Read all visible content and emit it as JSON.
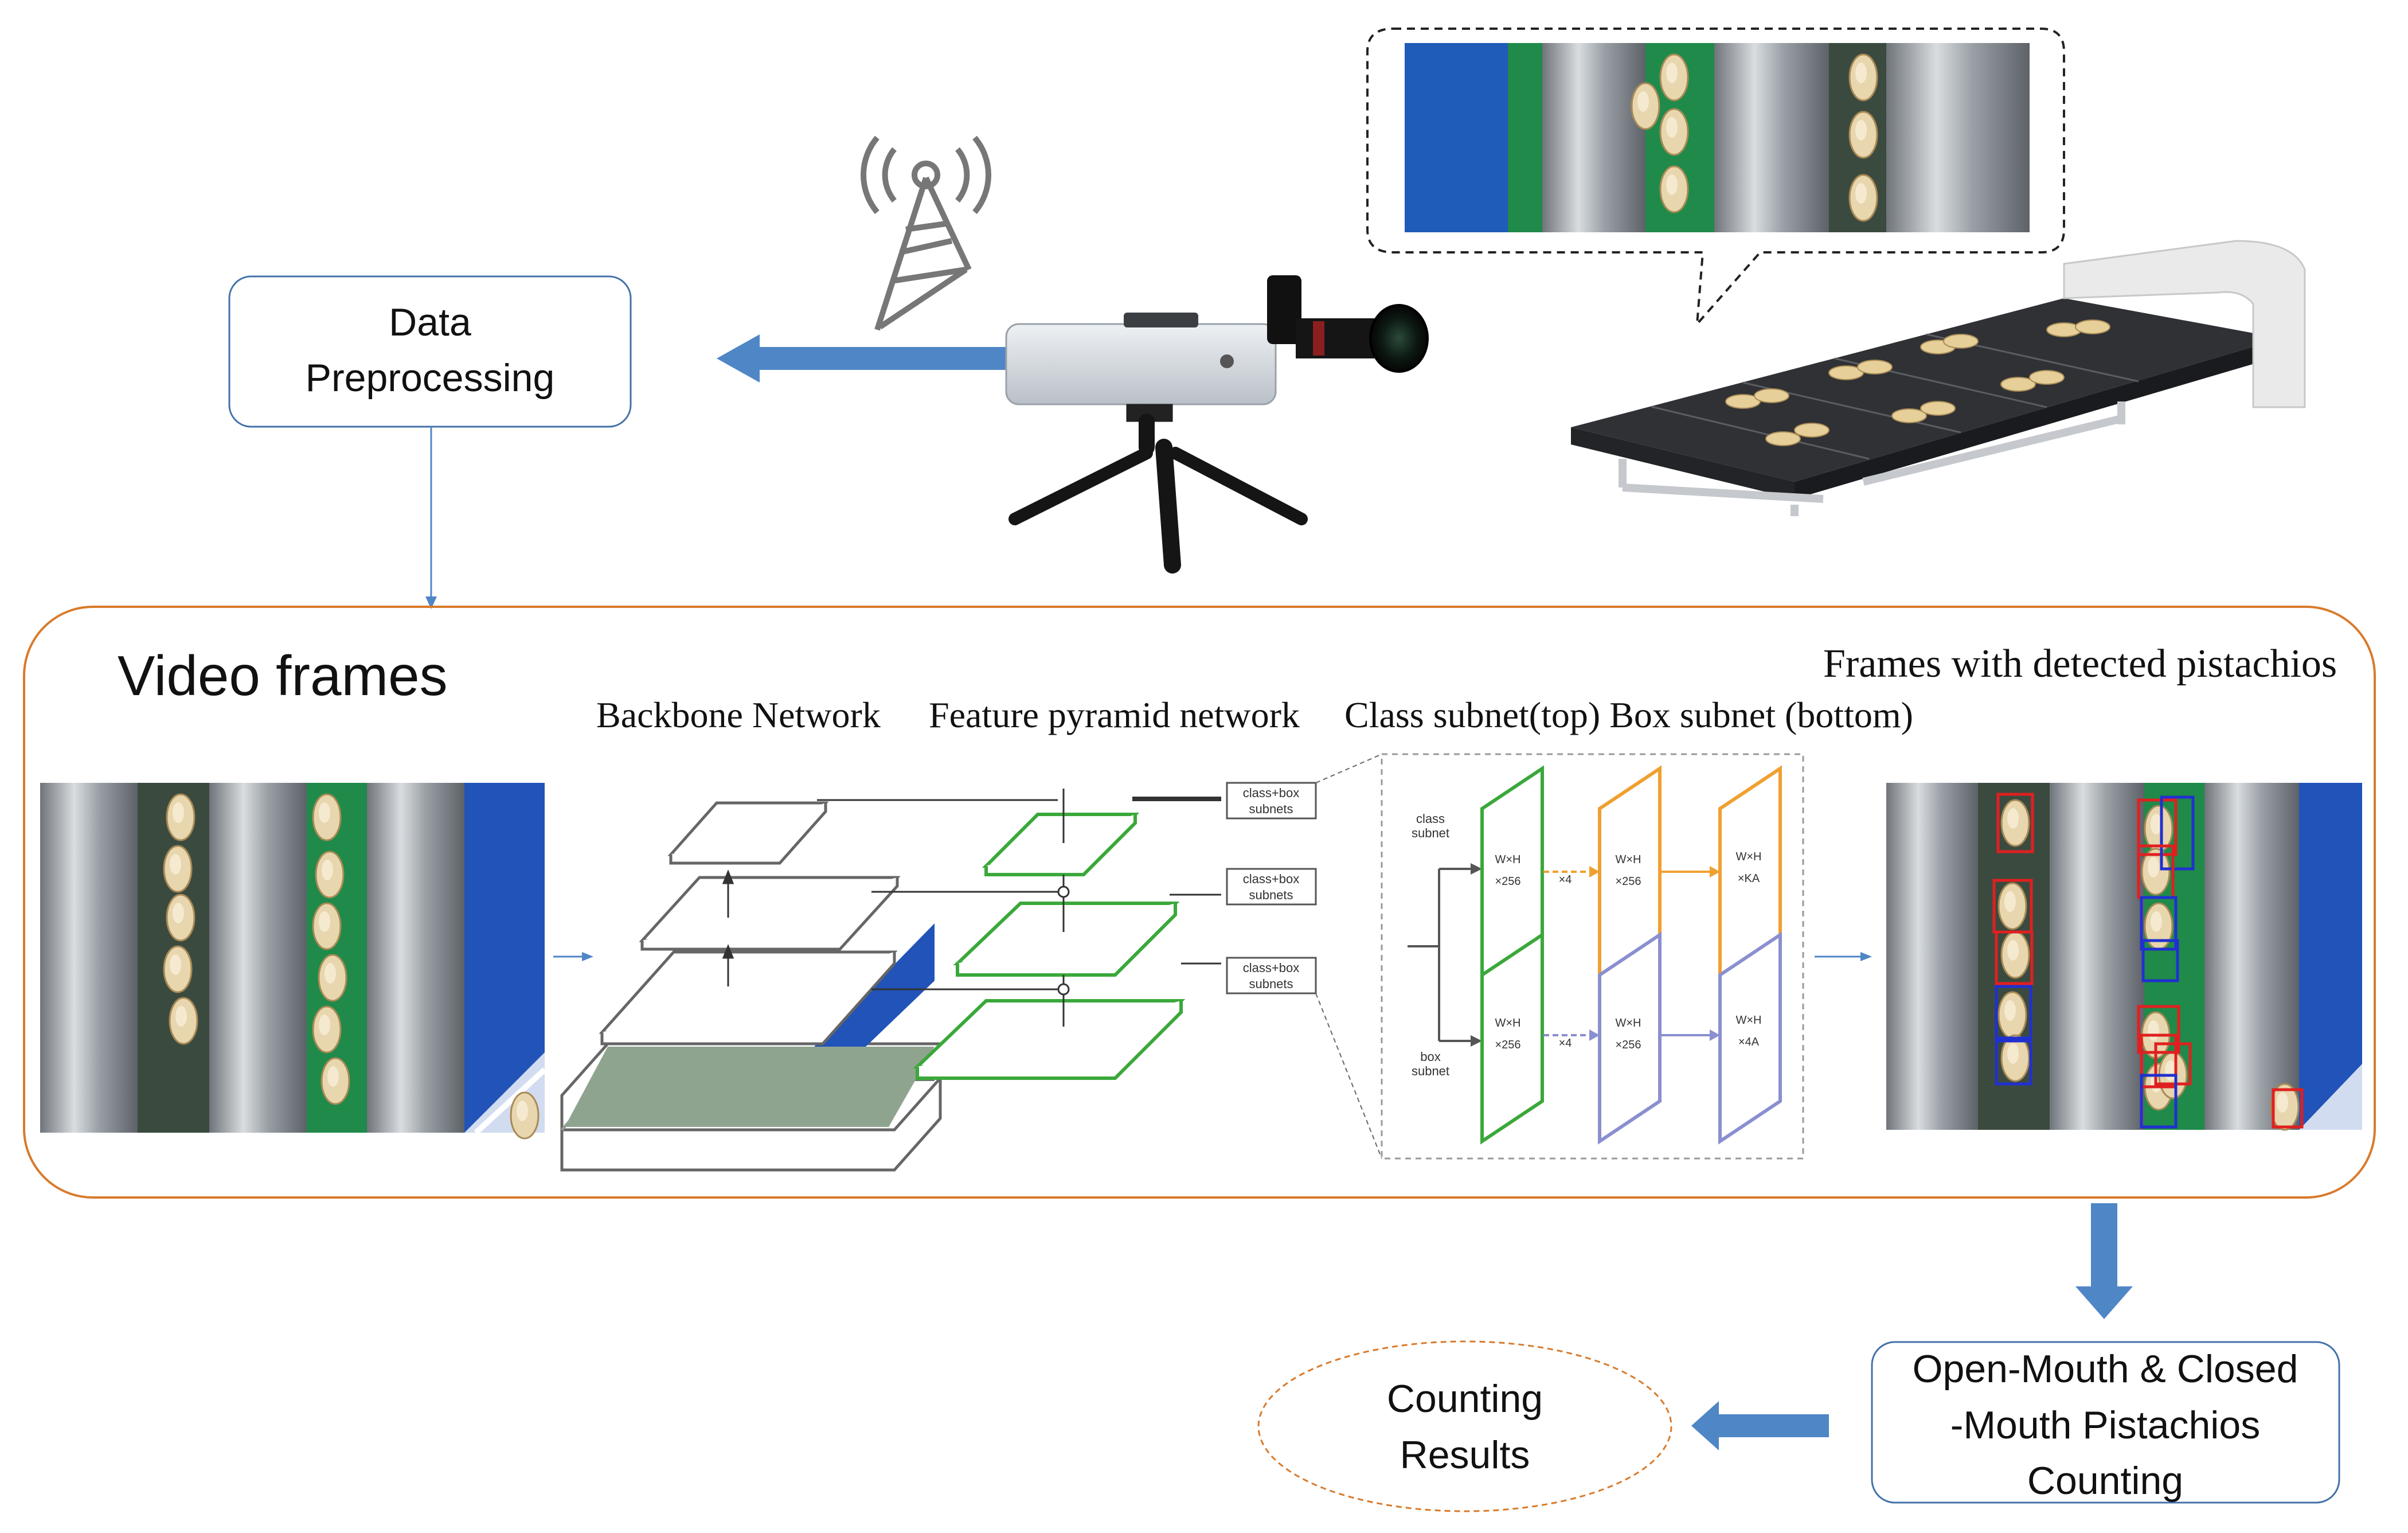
{
  "boxes": {
    "data_preprocessing": [
      "Data",
      "Preprocessing"
    ],
    "video_frames": "Video frames",
    "counting": [
      "Open-Mouth & Closed",
      "-Mouth Pistachios",
      "Counting"
    ],
    "results": [
      "Counting",
      "Results"
    ]
  },
  "captions": {
    "backbone": "Backbone Network",
    "fpn": "Feature pyramid network",
    "subnets": "Class subnet(top) Box subnet (bottom)",
    "detected": "Frames with detected pistachios"
  },
  "fpn_labels": [
    "class+box",
    "subnets"
  ],
  "subnet_labels": {
    "class_top": [
      "class",
      "subnet"
    ],
    "box_bottom": [
      "box",
      "subnet"
    ],
    "wh": "W×H",
    "c256": "×256",
    "x4": "×4",
    "ka": "×KA",
    "a4": "×4A"
  },
  "colors": {
    "accent_orange": "#d97a2b",
    "arrow_blue": "#4f86c6",
    "box_border": "#4472a8",
    "fpn_green": "#3aa83a",
    "class_orange": "#f0a030",
    "box_purple": "#8a8fd0",
    "detect_red": "#e02020",
    "detect_blue": "#2030d0"
  },
  "icons": [
    "antenna-tower-icon",
    "smartphone-camera-icon",
    "tripod-icon",
    "conveyor-belt-icon",
    "pistachio-icon"
  ]
}
